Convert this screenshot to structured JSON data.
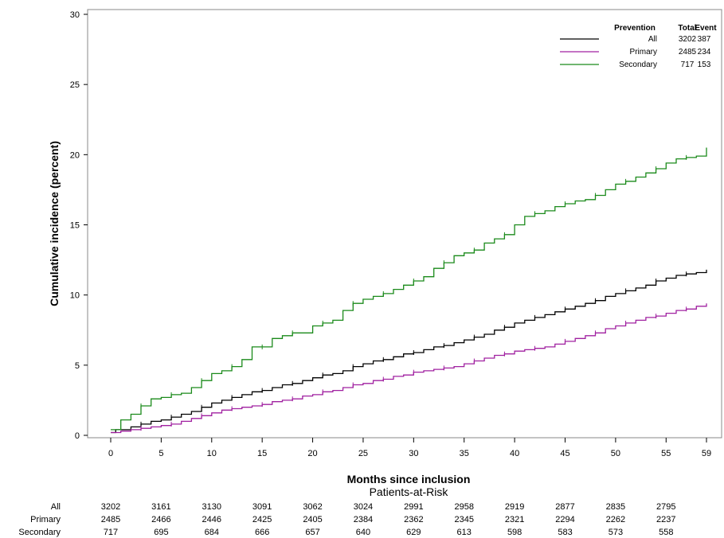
{
  "chart_data": {
    "type": "line",
    "step": true,
    "xlabel": "Months since inclusion",
    "ylabel": "Cumulative incidence (percent)",
    "xlim": [
      0,
      59
    ],
    "ylim": [
      0,
      30
    ],
    "x_ticks": [
      0,
      5,
      10,
      15,
      20,
      25,
      30,
      35,
      40,
      45,
      50,
      55,
      59
    ],
    "y_ticks": [
      0,
      5,
      10,
      15,
      20,
      25,
      30
    ],
    "grid": false,
    "legend": {
      "placement": "top-right",
      "headers": [
        "Prevention",
        "Total",
        "Event"
      ],
      "entries": [
        {
          "name": "All",
          "total": "3202",
          "event": "387",
          "color": "#000000"
        },
        {
          "name": "Primary",
          "total": "2485",
          "event": "234",
          "color": "#a020a0"
        },
        {
          "name": "Secondary",
          "total": "717",
          "event": "153",
          "color": "#1a8a1a"
        }
      ]
    },
    "series": [
      {
        "name": "All",
        "color": "#000000",
        "points": [
          [
            0,
            0.2
          ],
          [
            0.5,
            0.4
          ],
          [
            2,
            0.6
          ],
          [
            3,
            0.8
          ],
          [
            4,
            1.0
          ],
          [
            5,
            1.1
          ],
          [
            6,
            1.3
          ],
          [
            7,
            1.5
          ],
          [
            8,
            1.7
          ],
          [
            9,
            2.0
          ],
          [
            10,
            2.3
          ],
          [
            11,
            2.5
          ],
          [
            12,
            2.7
          ],
          [
            13,
            2.9
          ],
          [
            14,
            3.1
          ],
          [
            15,
            3.2
          ],
          [
            16,
            3.4
          ],
          [
            17,
            3.6
          ],
          [
            18,
            3.7
          ],
          [
            19,
            3.9
          ],
          [
            20,
            4.1
          ],
          [
            21,
            4.3
          ],
          [
            22,
            4.4
          ],
          [
            23,
            4.6
          ],
          [
            24,
            4.9
          ],
          [
            25,
            5.1
          ],
          [
            26,
            5.3
          ],
          [
            27,
            5.4
          ],
          [
            28,
            5.6
          ],
          [
            29,
            5.8
          ],
          [
            30,
            5.9
          ],
          [
            31,
            6.1
          ],
          [
            32,
            6.3
          ],
          [
            33,
            6.4
          ],
          [
            34,
            6.6
          ],
          [
            35,
            6.8
          ],
          [
            36,
            7.0
          ],
          [
            37,
            7.2
          ],
          [
            38,
            7.5
          ],
          [
            39,
            7.7
          ],
          [
            40,
            8.0
          ],
          [
            41,
            8.2
          ],
          [
            42,
            8.4
          ],
          [
            43,
            8.6
          ],
          [
            44,
            8.8
          ],
          [
            45,
            9.0
          ],
          [
            46,
            9.2
          ],
          [
            47,
            9.4
          ],
          [
            48,
            9.6
          ],
          [
            49,
            9.9
          ],
          [
            50,
            10.1
          ],
          [
            51,
            10.3
          ],
          [
            52,
            10.5
          ],
          [
            53,
            10.7
          ],
          [
            54,
            11.0
          ],
          [
            55,
            11.2
          ],
          [
            56,
            11.4
          ],
          [
            57,
            11.5
          ],
          [
            58,
            11.6
          ],
          [
            59,
            11.8
          ]
        ]
      },
      {
        "name": "Primary",
        "color": "#a020a0",
        "points": [
          [
            0,
            0.2
          ],
          [
            1,
            0.3
          ],
          [
            2,
            0.4
          ],
          [
            3,
            0.5
          ],
          [
            4,
            0.6
          ],
          [
            5,
            0.7
          ],
          [
            6,
            0.8
          ],
          [
            7,
            1.0
          ],
          [
            8,
            1.2
          ],
          [
            9,
            1.4
          ],
          [
            10,
            1.6
          ],
          [
            11,
            1.8
          ],
          [
            12,
            1.9
          ],
          [
            13,
            2.0
          ],
          [
            14,
            2.1
          ],
          [
            15,
            2.2
          ],
          [
            16,
            2.4
          ],
          [
            17,
            2.5
          ],
          [
            18,
            2.6
          ],
          [
            19,
            2.8
          ],
          [
            20,
            2.9
          ],
          [
            21,
            3.1
          ],
          [
            22,
            3.2
          ],
          [
            23,
            3.4
          ],
          [
            24,
            3.6
          ],
          [
            25,
            3.7
          ],
          [
            26,
            3.9
          ],
          [
            27,
            4.0
          ],
          [
            28,
            4.2
          ],
          [
            29,
            4.3
          ],
          [
            30,
            4.5
          ],
          [
            31,
            4.6
          ],
          [
            32,
            4.7
          ],
          [
            33,
            4.8
          ],
          [
            34,
            4.9
          ],
          [
            35,
            5.1
          ],
          [
            36,
            5.3
          ],
          [
            37,
            5.5
          ],
          [
            38,
            5.7
          ],
          [
            39,
            5.8
          ],
          [
            40,
            6.0
          ],
          [
            41,
            6.1
          ],
          [
            42,
            6.2
          ],
          [
            43,
            6.3
          ],
          [
            44,
            6.5
          ],
          [
            45,
            6.7
          ],
          [
            46,
            6.9
          ],
          [
            47,
            7.1
          ],
          [
            48,
            7.3
          ],
          [
            49,
            7.6
          ],
          [
            50,
            7.8
          ],
          [
            51,
            8.0
          ],
          [
            52,
            8.2
          ],
          [
            53,
            8.4
          ],
          [
            54,
            8.5
          ],
          [
            55,
            8.7
          ],
          [
            56,
            8.9
          ],
          [
            57,
            9.0
          ],
          [
            58,
            9.2
          ],
          [
            59,
            9.4
          ]
        ]
      },
      {
        "name": "Secondary",
        "color": "#1a8a1a",
        "points": [
          [
            0,
            0.4
          ],
          [
            1,
            1.1
          ],
          [
            2,
            1.5
          ],
          [
            3,
            2.1
          ],
          [
            4,
            2.6
          ],
          [
            5,
            2.7
          ],
          [
            6,
            2.9
          ],
          [
            7,
            3.0
          ],
          [
            8,
            3.4
          ],
          [
            9,
            3.9
          ],
          [
            10,
            4.4
          ],
          [
            11,
            4.6
          ],
          [
            12,
            4.9
          ],
          [
            13,
            5.4
          ],
          [
            14,
            6.3
          ],
          [
            15,
            6.3
          ],
          [
            16,
            6.9
          ],
          [
            17,
            7.1
          ],
          [
            18,
            7.3
          ],
          [
            19,
            7.3
          ],
          [
            20,
            7.8
          ],
          [
            21,
            8.0
          ],
          [
            22,
            8.2
          ],
          [
            23,
            8.9
          ],
          [
            24,
            9.4
          ],
          [
            25,
            9.7
          ],
          [
            26,
            9.9
          ],
          [
            27,
            10.1
          ],
          [
            28,
            10.4
          ],
          [
            29,
            10.7
          ],
          [
            30,
            11.0
          ],
          [
            31,
            11.3
          ],
          [
            32,
            11.9
          ],
          [
            33,
            12.3
          ],
          [
            34,
            12.8
          ],
          [
            35,
            13.0
          ],
          [
            36,
            13.2
          ],
          [
            37,
            13.7
          ],
          [
            38,
            14.0
          ],
          [
            39,
            14.3
          ],
          [
            40,
            15.0
          ],
          [
            41,
            15.6
          ],
          [
            42,
            15.8
          ],
          [
            43,
            16.0
          ],
          [
            44,
            16.3
          ],
          [
            45,
            16.5
          ],
          [
            46,
            16.7
          ],
          [
            47,
            16.8
          ],
          [
            48,
            17.1
          ],
          [
            49,
            17.5
          ],
          [
            50,
            17.9
          ],
          [
            51,
            18.1
          ],
          [
            52,
            18.4
          ],
          [
            53,
            18.7
          ],
          [
            54,
            19.0
          ],
          [
            55,
            19.4
          ],
          [
            56,
            19.7
          ],
          [
            57,
            19.8
          ],
          [
            58,
            19.9
          ],
          [
            59,
            20.5
          ]
        ]
      }
    ],
    "risk_table": {
      "title": "Patients-at-Risk",
      "columns": [
        0,
        5,
        10,
        15,
        20,
        25,
        30,
        35,
        40,
        45,
        50,
        55
      ],
      "rows": [
        {
          "label": "All",
          "values": [
            "3202",
            "3161",
            "3130",
            "3091",
            "3062",
            "3024",
            "2991",
            "2958",
            "2919",
            "2877",
            "2835",
            "2795"
          ]
        },
        {
          "label": "Primary",
          "values": [
            "2485",
            "2466",
            "2446",
            "2425",
            "2405",
            "2384",
            "2362",
            "2345",
            "2321",
            "2294",
            "2262",
            "2237"
          ]
        },
        {
          "label": "Secondary",
          "values": [
            "717",
            "695",
            "684",
            "666",
            "657",
            "640",
            "629",
            "613",
            "598",
            "583",
            "573",
            "558"
          ]
        }
      ]
    }
  }
}
